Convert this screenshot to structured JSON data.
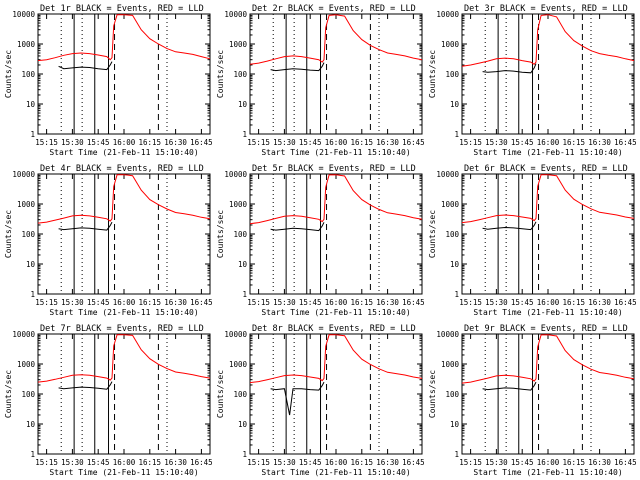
{
  "colors": {
    "events": "#000000",
    "lld": "#ff0000",
    "background": "#ffffff",
    "axes": "#000000"
  },
  "chart_data": [
    {
      "type": "line",
      "title": "Det 1r BLACK = Events, RED = LLD",
      "xlabel": "Start Time (21-Feb-11 15:10:40)",
      "ylabel": "Counts/sec",
      "x_tick_labels": [
        "15:15",
        "15:30",
        "15:45",
        "16:00",
        "16:15",
        "16:30",
        "16:45"
      ],
      "y_tick_labels": [
        "1",
        "10",
        "100",
        "1000",
        "10000"
      ],
      "ylog": true,
      "ylim": [
        1,
        10000
      ],
      "xlim": [
        "15:10",
        "16:50"
      ],
      "series": [
        {
          "x": [
            "15:10",
            "15:15",
            "15:20",
            "15:25",
            "15:30",
            "15:35",
            "15:40",
            "15:45",
            "15:50",
            "15:52",
            "15:53",
            "15:54",
            "15:56",
            "16:00",
            "16:05",
            "16:10",
            "16:15",
            "16:20",
            "16:25",
            "16:30",
            "16:35",
            "16:40",
            "16:45",
            "16:50"
          ],
          "values": [
            280,
            300,
            350,
            420,
            480,
            500,
            480,
            430,
            380,
            300,
            350,
            4000,
            9500,
            9500,
            9000,
            3000,
            1500,
            1000,
            700,
            550,
            500,
            450,
            380,
            320
          ]
        },
        {
          "x": [
            "15:22",
            "15:25",
            "15:30",
            "15:35",
            "15:40",
            "15:45",
            "15:50",
            "15:52",
            "15:53"
          ],
          "values": [
            180,
            150,
            160,
            170,
            165,
            150,
            140,
            200,
            260
          ]
        }
      ]
    },
    {
      "type": "line",
      "title": "Det 2r BLACK = Events, RED = LLD",
      "xlabel": "Start Time (21-Feb-11 15:10:40)",
      "ylabel": "Counts/sec",
      "x_tick_labels": [
        "15:15",
        "15:30",
        "15:45",
        "16:00",
        "16:15",
        "16:30",
        "16:45"
      ],
      "y_tick_labels": [
        "1",
        "10",
        "100",
        "1000",
        "10000"
      ],
      "ylog": true,
      "ylim": [
        1,
        10000
      ],
      "xlim": [
        "15:10",
        "16:50"
      ],
      "series": [
        {
          "x": [
            "15:10",
            "15:15",
            "15:20",
            "15:25",
            "15:30",
            "15:35",
            "15:40",
            "15:45",
            "15:50",
            "15:52",
            "15:53",
            "15:54",
            "15:56",
            "16:00",
            "16:05",
            "16:10",
            "16:15",
            "16:20",
            "16:25",
            "16:30",
            "16:35",
            "16:40",
            "16:45",
            "16:50"
          ],
          "values": [
            210,
            230,
            270,
            320,
            380,
            400,
            380,
            340,
            300,
            250,
            300,
            3500,
            9000,
            9500,
            8500,
            2800,
            1400,
            900,
            650,
            500,
            450,
            400,
            340,
            300
          ]
        },
        {
          "x": [
            "15:22",
            "15:25",
            "15:30",
            "15:35",
            "15:40",
            "15:45",
            "15:50",
            "15:52",
            "15:53"
          ],
          "values": [
            140,
            130,
            140,
            150,
            145,
            135,
            130,
            180,
            240
          ]
        }
      ]
    },
    {
      "type": "line",
      "title": "Det 3r BLACK = Events, RED = LLD",
      "xlabel": "Start Time (21-Feb-11 15:10:40)",
      "ylabel": "Counts/sec",
      "x_tick_labels": [
        "15:15",
        "15:30",
        "15:45",
        "16:00",
        "16:15",
        "16:30",
        "16:45"
      ],
      "y_tick_labels": [
        "1",
        "10",
        "100",
        "1000",
        "10000"
      ],
      "ylog": true,
      "ylim": [
        1,
        10000
      ],
      "xlim": [
        "15:10",
        "16:50"
      ],
      "series": [
        {
          "x": [
            "15:10",
            "15:15",
            "15:20",
            "15:25",
            "15:30",
            "15:35",
            "15:40",
            "15:45",
            "15:50",
            "15:52",
            "15:53",
            "15:54",
            "15:56",
            "16:00",
            "16:05",
            "16:10",
            "16:15",
            "16:20",
            "16:25",
            "16:30",
            "16:35",
            "16:40",
            "16:45",
            "16:50"
          ],
          "values": [
            180,
            200,
            230,
            270,
            320,
            340,
            320,
            280,
            250,
            210,
            250,
            3000,
            9000,
            9500,
            8000,
            2600,
            1300,
            850,
            600,
            480,
            420,
            380,
            320,
            280
          ]
        },
        {
          "x": [
            "15:22",
            "15:25",
            "15:30",
            "15:35",
            "15:40",
            "15:45",
            "15:50",
            "15:52",
            "15:53"
          ],
          "values": [
            120,
            115,
            120,
            130,
            125,
            115,
            110,
            160,
            220
          ]
        }
      ]
    },
    {
      "type": "line",
      "title": "Det 4r BLACK = Events, RED = LLD",
      "xlabel": "Start Time (21-Feb-11 15:10:40)",
      "ylabel": "Counts/sec",
      "x_tick_labels": [
        "15:15",
        "15:30",
        "15:45",
        "16:00",
        "16:15",
        "16:30",
        "16:45"
      ],
      "y_tick_labels": [
        "1",
        "10",
        "100",
        "1000",
        "10000"
      ],
      "ylog": true,
      "ylim": [
        1,
        10000
      ],
      "xlim": [
        "15:10",
        "16:50"
      ],
      "series": [
        {
          "x": [
            "15:10",
            "15:15",
            "15:20",
            "15:25",
            "15:30",
            "15:35",
            "15:40",
            "15:45",
            "15:50",
            "15:52",
            "15:53",
            "15:54",
            "15:56",
            "16:00",
            "16:05",
            "16:10",
            "16:15",
            "16:20",
            "16:25",
            "16:30",
            "16:35",
            "16:40",
            "16:45",
            "16:50"
          ],
          "values": [
            230,
            250,
            290,
            340,
            400,
            420,
            400,
            360,
            320,
            270,
            320,
            3800,
            9500,
            9500,
            8800,
            2900,
            1400,
            950,
            680,
            520,
            470,
            420,
            360,
            320
          ]
        },
        {
          "x": [
            "15:22",
            "15:25",
            "15:30",
            "15:35",
            "15:40",
            "15:45",
            "15:50",
            "15:52",
            "15:53"
          ],
          "values": [
            150,
            140,
            150,
            160,
            155,
            145,
            135,
            190,
            250
          ]
        }
      ]
    },
    {
      "type": "line",
      "title": "Det 5r BLACK = Events, RED = LLD",
      "xlabel": "Start Time (21-Feb-11 15:10:40)",
      "ylabel": "Counts/sec",
      "x_tick_labels": [
        "15:15",
        "15:30",
        "15:45",
        "16:00",
        "16:15",
        "16:30",
        "16:45"
      ],
      "y_tick_labels": [
        "1",
        "10",
        "100",
        "1000",
        "10000"
      ],
      "ylog": true,
      "ylim": [
        1,
        10000
      ],
      "xlim": [
        "15:10",
        "16:50"
      ],
      "series": [
        {
          "x": [
            "15:10",
            "15:15",
            "15:20",
            "15:25",
            "15:30",
            "15:35",
            "15:40",
            "15:45",
            "15:50",
            "15:52",
            "15:53",
            "15:54",
            "15:56",
            "16:00",
            "16:05",
            "16:10",
            "16:15",
            "16:20",
            "16:25",
            "16:30",
            "16:35",
            "16:40",
            "16:45",
            "16:50"
          ],
          "values": [
            220,
            240,
            280,
            330,
            390,
            410,
            390,
            350,
            310,
            260,
            310,
            3600,
            9300,
            9500,
            8600,
            2800,
            1400,
            920,
            660,
            510,
            460,
            410,
            350,
            310
          ]
        },
        {
          "x": [
            "15:22",
            "15:25",
            "15:30",
            "15:35",
            "15:40",
            "15:45",
            "15:50",
            "15:52",
            "15:53"
          ],
          "values": [
            145,
            135,
            145,
            155,
            150,
            140,
            130,
            185,
            245
          ]
        }
      ]
    },
    {
      "type": "line",
      "title": "Det 6r BLACK = Events, RED = LLD",
      "xlabel": "Start Time (21-Feb-11 15:10:40)",
      "ylabel": "Counts/sec",
      "x_tick_labels": [
        "15:15",
        "15:30",
        "15:45",
        "16:00",
        "16:15",
        "16:30",
        "16:45"
      ],
      "y_tick_labels": [
        "1",
        "10",
        "100",
        "1000",
        "10000"
      ],
      "ylog": true,
      "ylim": [
        1,
        10000
      ],
      "xlim": [
        "15:10",
        "16:50"
      ],
      "series": [
        {
          "x": [
            "15:10",
            "15:15",
            "15:20",
            "15:25",
            "15:30",
            "15:35",
            "15:40",
            "15:45",
            "15:50",
            "15:52",
            "15:53",
            "15:54",
            "15:56",
            "16:00",
            "16:05",
            "16:10",
            "16:15",
            "16:20",
            "16:25",
            "16:30",
            "16:35",
            "16:40",
            "16:45",
            "16:50"
          ],
          "values": [
            240,
            260,
            300,
            350,
            410,
            430,
            410,
            370,
            330,
            280,
            330,
            3900,
            9500,
            9500,
            8800,
            2900,
            1450,
            960,
            690,
            530,
            480,
            430,
            370,
            330
          ]
        },
        {
          "x": [
            "15:22",
            "15:25",
            "15:30",
            "15:35",
            "15:40",
            "15:45",
            "15:50",
            "15:52",
            "15:53"
          ],
          "values": [
            155,
            145,
            155,
            165,
            160,
            150,
            140,
            195,
            255
          ]
        }
      ]
    },
    {
      "type": "line",
      "title": "Det 7r BLACK = Events, RED = LLD",
      "xlabel": "Start Time (21-Feb-11 15:10:40)",
      "ylabel": "Counts/sec",
      "x_tick_labels": [
        "15:15",
        "15:30",
        "15:45",
        "16:00",
        "16:15",
        "16:30",
        "16:45"
      ],
      "y_tick_labels": [
        "1",
        "10",
        "100",
        "1000",
        "10000"
      ],
      "ylog": true,
      "ylim": [
        1,
        10000
      ],
      "xlim": [
        "15:10",
        "16:50"
      ],
      "series": [
        {
          "x": [
            "15:10",
            "15:15",
            "15:20",
            "15:25",
            "15:30",
            "15:35",
            "15:40",
            "15:45",
            "15:50",
            "15:52",
            "15:53",
            "15:54",
            "15:56",
            "16:00",
            "16:05",
            "16:10",
            "16:15",
            "16:20",
            "16:25",
            "16:30",
            "16:35",
            "16:40",
            "16:45",
            "16:50"
          ],
          "values": [
            250,
            270,
            310,
            360,
            420,
            440,
            420,
            380,
            340,
            290,
            340,
            4000,
            9500,
            9500,
            9000,
            3000,
            1500,
            980,
            700,
            540,
            490,
            440,
            380,
            340
          ]
        },
        {
          "x": [
            "15:22",
            "15:25",
            "15:30",
            "15:35",
            "15:40",
            "15:45",
            "15:50",
            "15:52",
            "15:53"
          ],
          "values": [
            160,
            150,
            160,
            170,
            165,
            155,
            145,
            200,
            260
          ]
        }
      ]
    },
    {
      "type": "line",
      "title": "Det 8r BLACK = Events, RED = LLD",
      "xlabel": "Start Time (21-Feb-11 15:10:40)",
      "ylabel": "Counts/sec",
      "x_tick_labels": [
        "15:15",
        "15:30",
        "15:45",
        "16:00",
        "16:15",
        "16:30",
        "16:45"
      ],
      "y_tick_labels": [
        "1",
        "10",
        "100",
        "1000",
        "10000"
      ],
      "ylog": true,
      "ylim": [
        1,
        10000
      ],
      "xlim": [
        "15:10",
        "16:50"
      ],
      "series": [
        {
          "x": [
            "15:10",
            "15:15",
            "15:20",
            "15:25",
            "15:30",
            "15:35",
            "15:40",
            "15:45",
            "15:50",
            "15:52",
            "15:53",
            "15:54",
            "15:56",
            "16:00",
            "16:05",
            "16:10",
            "16:15",
            "16:20",
            "16:25",
            "16:30",
            "16:35",
            "16:40",
            "16:45",
            "16:50"
          ],
          "values": [
            240,
            260,
            300,
            350,
            410,
            430,
            410,
            370,
            330,
            280,
            330,
            3900,
            9400,
            9500,
            8800,
            2900,
            1450,
            960,
            690,
            530,
            480,
            430,
            370,
            330
          ]
        },
        {
          "x": [
            "15:22",
            "15:25",
            "15:30",
            "15:33",
            "15:35",
            "15:40",
            "15:45",
            "15:50",
            "15:52",
            "15:53"
          ],
          "values": [
            150,
            140,
            150,
            20,
            150,
            150,
            140,
            135,
            190,
            250
          ]
        }
      ]
    },
    {
      "type": "line",
      "title": "Det 9r BLACK = Events, RED = LLD",
      "xlabel": "Start Time (21-Feb-11 15:10:40)",
      "ylabel": "Counts/sec",
      "x_tick_labels": [
        "15:15",
        "15:30",
        "15:45",
        "16:00",
        "16:15",
        "16:30",
        "16:45"
      ],
      "y_tick_labels": [
        "1",
        "10",
        "100",
        "1000",
        "10000"
      ],
      "ylog": true,
      "ylim": [
        1,
        10000
      ],
      "xlim": [
        "15:10",
        "16:50"
      ],
      "series": [
        {
          "x": [
            "15:10",
            "15:15",
            "15:20",
            "15:25",
            "15:30",
            "15:35",
            "15:40",
            "15:45",
            "15:50",
            "15:52",
            "15:53",
            "15:54",
            "15:56",
            "16:00",
            "16:05",
            "16:10",
            "16:15",
            "16:20",
            "16:25",
            "16:30",
            "16:35",
            "16:40",
            "16:45",
            "16:50"
          ],
          "values": [
            230,
            250,
            290,
            340,
            400,
            420,
            400,
            360,
            320,
            270,
            320,
            3700,
            9300,
            9500,
            8600,
            2800,
            1400,
            940,
            670,
            520,
            470,
            420,
            360,
            320
          ]
        },
        {
          "x": [
            "15:22",
            "15:25",
            "15:30",
            "15:35",
            "15:40",
            "15:45",
            "15:50",
            "15:52",
            "15:53"
          ],
          "values": [
            150,
            140,
            150,
            160,
            155,
            145,
            135,
            190,
            250
          ]
        }
      ]
    }
  ]
}
